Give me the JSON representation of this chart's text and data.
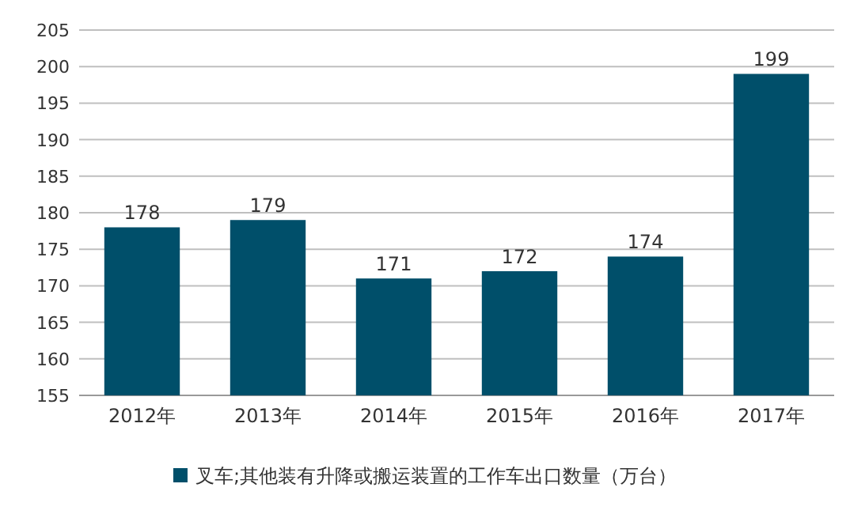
{
  "chart_data": {
    "type": "bar",
    "categories": [
      "2012年",
      "2013年",
      "2014年",
      "2015年",
      "2016年",
      "2017年"
    ],
    "series": [
      {
        "name": "叉车;其他装有升降或搬运装置的工作车出口数量（万台）",
        "color": "#004f6a",
        "values": [
          178,
          179,
          171,
          172,
          174,
          199
        ]
      }
    ],
    "ylim": [
      155,
      205
    ],
    "yticks": [
      155,
      160,
      165,
      170,
      175,
      180,
      185,
      190,
      195,
      200,
      205
    ],
    "grid": "y",
    "legend": "bottom",
    "data_labels": true
  }
}
